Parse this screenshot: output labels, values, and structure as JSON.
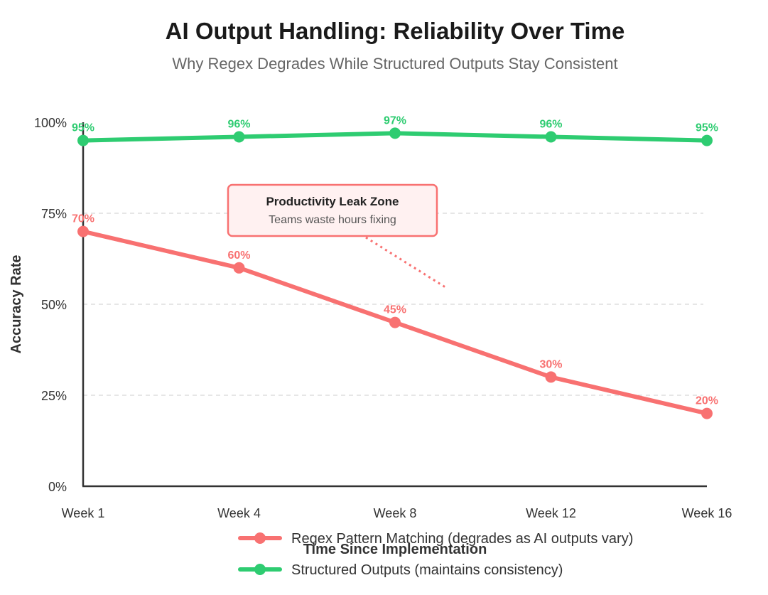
{
  "chart_data": {
    "type": "line",
    "title": "AI Output Handling: Reliability Over Time",
    "subtitle": "Why Regex Degrades While Structured Outputs Stay Consistent",
    "xlabel": "Time Since Implementation",
    "ylabel": "Accuracy Rate",
    "categories": [
      "Week 1",
      "Week 4",
      "Week 8",
      "Week 12",
      "Week 16"
    ],
    "ylim": [
      0,
      100
    ],
    "yticks": [
      0,
      25,
      50,
      75,
      100
    ],
    "ytick_labels": [
      "0%",
      "25%",
      "50%",
      "75%",
      "100%"
    ],
    "grid": "horizontal dashed",
    "legend_position": "bottom-center",
    "series": [
      {
        "name": "Regex Pattern Matching (degrades as AI outputs vary)",
        "color": "#f87171",
        "values": [
          70,
          60,
          45,
          30,
          20
        ],
        "labels": [
          "70%",
          "60%",
          "45%",
          "30%",
          "20%"
        ]
      },
      {
        "name": "Structured Outputs (maintains consistency)",
        "color": "#2ecc71",
        "values": [
          95,
          96,
          97,
          96,
          95
        ],
        "labels": [
          "95%",
          "96%",
          "97%",
          "96%",
          "95%"
        ]
      }
    ],
    "annotation": {
      "title": "Productivity Leak Zone",
      "text": "Teams waste hours fixing",
      "border_color": "#f87171",
      "fill_color": "#fff1f1"
    }
  }
}
